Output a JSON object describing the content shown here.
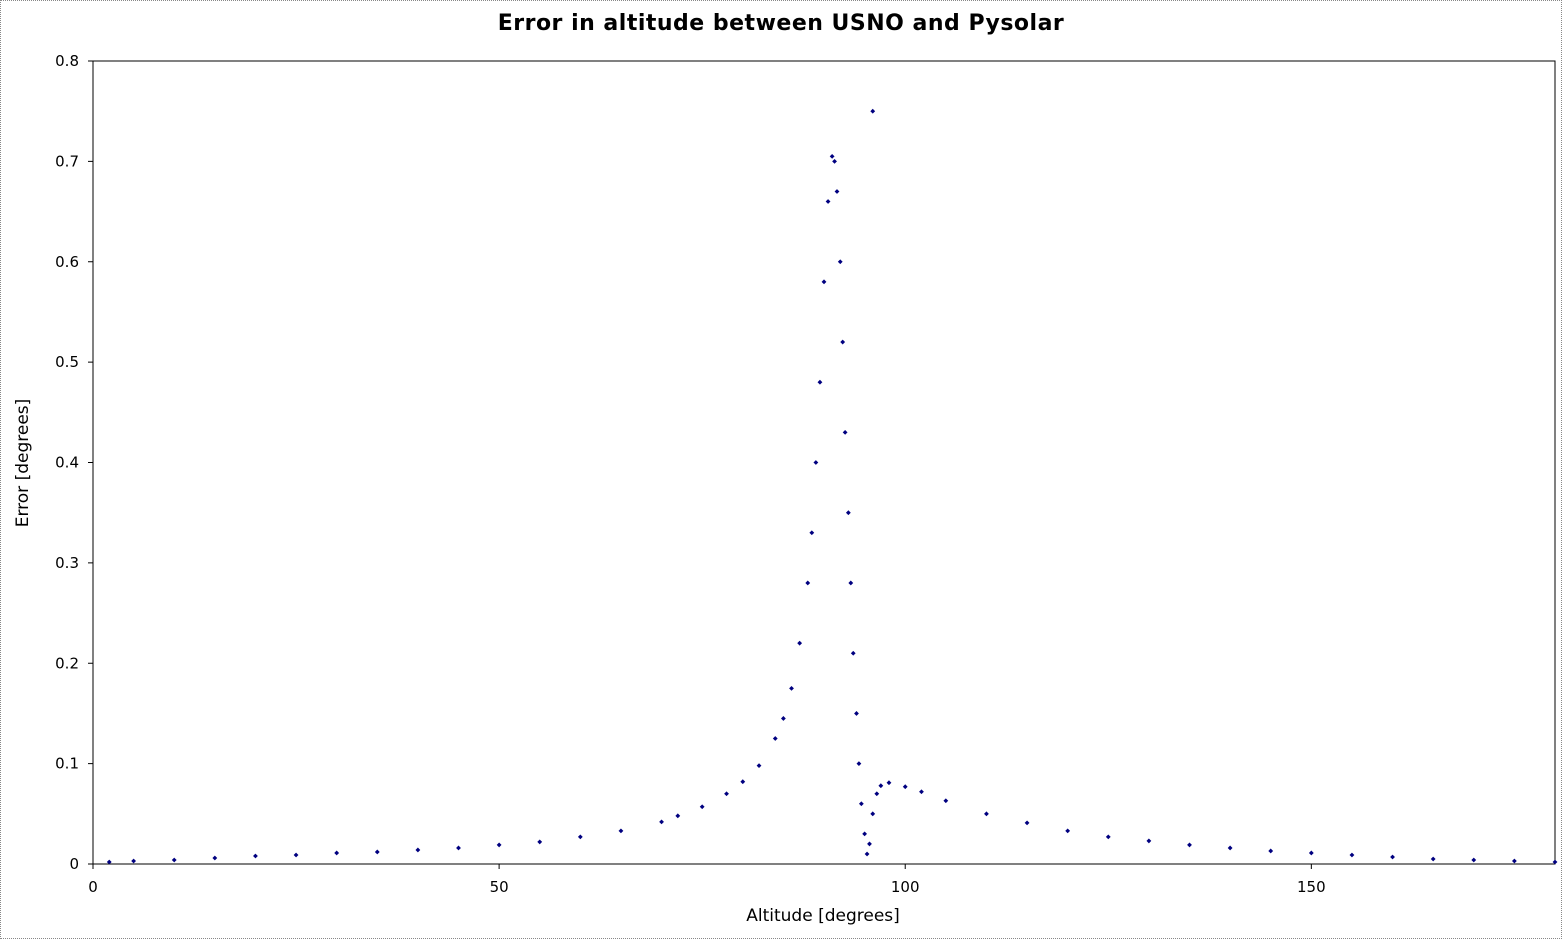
{
  "chart_data": {
    "type": "scatter",
    "title": "Error in altitude between USNO and Pysolar",
    "xlabel": "Altitude [degrees]",
    "ylabel": "Error [degrees]",
    "xlim": [
      0,
      180
    ],
    "ylim": [
      0,
      0.8
    ],
    "x_ticks": [
      0,
      50,
      100,
      150
    ],
    "y_ticks": [
      0,
      0.1,
      0.2,
      0.3,
      0.4,
      0.5,
      0.6,
      0.7,
      0.8
    ],
    "x_tick_labels": [
      "0",
      "50",
      "100",
      "150"
    ],
    "y_tick_labels": [
      "0",
      "0.1",
      "0.2",
      "0.3",
      "0.4",
      "0.5",
      "0.6",
      "0.7",
      "0.8"
    ],
    "grid": false,
    "legend": "none",
    "marker_color": "#000080",
    "series": [
      {
        "x": [
          2,
          5,
          10,
          15,
          20,
          25,
          30,
          35,
          40,
          45,
          50,
          55,
          60,
          65,
          70,
          72,
          75,
          78,
          80,
          82,
          84,
          85,
          86,
          87,
          88,
          88.5,
          89,
          89.5,
          90,
          90.5,
          91,
          91.3,
          91.6,
          92,
          92.3,
          92.6,
          93,
          93.3,
          93.6,
          94,
          94.3,
          94.6,
          95,
          95.3,
          95.6,
          96,
          96.5,
          97,
          98,
          100,
          102,
          105,
          110,
          115,
          120,
          125,
          130,
          135,
          140,
          145,
          150,
          155,
          160,
          165,
          170,
          175,
          180
        ],
        "y": [
          0.002,
          0.003,
          0.004,
          0.006,
          0.008,
          0.009,
          0.011,
          0.012,
          0.014,
          0.016,
          0.019,
          0.022,
          0.027,
          0.033,
          0.042,
          0.048,
          0.057,
          0.07,
          0.082,
          0.098,
          0.125,
          0.145,
          0.175,
          0.22,
          0.28,
          0.33,
          0.4,
          0.48,
          0.58,
          0.66,
          0.705,
          0.7,
          0.67,
          0.6,
          0.52,
          0.43,
          0.35,
          0.28,
          0.21,
          0.15,
          0.1,
          0.06,
          0.03,
          0.01,
          0.02,
          0.05,
          0.07,
          0.078,
          0.081,
          0.077,
          0.072,
          0.063,
          0.05,
          0.041,
          0.033,
          0.027,
          0.023,
          0.019,
          0.016,
          0.013,
          0.011,
          0.009,
          0.007,
          0.005,
          0.004,
          0.003,
          0.002
        ]
      },
      {
        "x": [
          96
        ],
        "y": [
          0.75
        ]
      }
    ]
  }
}
